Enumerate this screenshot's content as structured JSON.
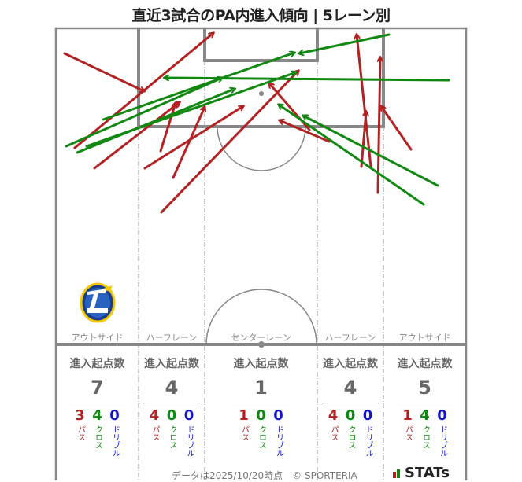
{
  "title": "直近3試合のPA内進入傾向 | 5レーン別",
  "lanes": [
    {
      "label": "アウトサイド",
      "stat_header": "進入起点数",
      "total": "7",
      "pass": "3",
      "cross": "4",
      "dribble": "0"
    },
    {
      "label": "ハーフレーン",
      "stat_header": "進入起点数",
      "total": "4",
      "pass": "4",
      "cross": "0",
      "dribble": "0"
    },
    {
      "label": "センターレーン",
      "stat_header": "進入起点数",
      "total": "1",
      "pass": "1",
      "cross": "0",
      "dribble": "0"
    },
    {
      "label": "ハーフレーン",
      "stat_header": "進入起点数",
      "total": "4",
      "pass": "4",
      "cross": "0",
      "dribble": "0"
    },
    {
      "label": "アウトサイド",
      "stat_header": "進入起点数",
      "total": "5",
      "pass": "1",
      "cross": "4",
      "dribble": "0"
    }
  ],
  "type_labels": {
    "pass": "パス",
    "cross": "クロス",
    "dribble": "ドリブル"
  },
  "footer": "データは2025/10/20時点　© SPORTERIA",
  "brand": "STATs",
  "colors": {
    "pass": "#b22222",
    "cross": "#118811",
    "dribble": "#1515cc",
    "pitch_line": "#888888"
  },
  "chart_data": {
    "type": "arrow-map",
    "title": "直近3試合のPA内進入傾向 | 5レーン別",
    "categories": [
      "アウトサイド",
      "ハーフレーン",
      "センターレーン",
      "ハーフレーン",
      "アウトサイド"
    ],
    "series": [
      {
        "name": "パス",
        "values": [
          3,
          4,
          1,
          4,
          1
        ]
      },
      {
        "name": "クロス",
        "values": [
          4,
          0,
          0,
          0,
          4
        ]
      },
      {
        "name": "ドリブル",
        "values": [
          0,
          0,
          0,
          0,
          0
        ]
      }
    ],
    "totals": [
      7,
      4,
      1,
      4,
      5
    ],
    "arrows": [
      {
        "type": "pass",
        "from": [
          82,
          68
        ],
        "to": [
          183,
          116
        ]
      },
      {
        "type": "pass",
        "from": [
          95,
          188
        ],
        "to": [
          271,
          42
        ]
      },
      {
        "type": "pass",
        "from": [
          120,
          214
        ],
        "to": [
          228,
          130
        ]
      },
      {
        "type": "pass",
        "from": [
          204,
          192
        ],
        "to": [
          223,
          131
        ]
      },
      {
        "type": "pass",
        "from": [
          220,
          226
        ],
        "to": [
          260,
          136
        ]
      },
      {
        "type": "pass",
        "from": [
          184,
          214
        ],
        "to": [
          309,
          135
        ]
      },
      {
        "type": "pass",
        "from": [
          205,
          270
        ],
        "to": [
          379,
          90
        ]
      },
      {
        "type": "pass",
        "from": [
          418,
          180
        ],
        "to": [
          355,
          153
        ]
      },
      {
        "type": "pass",
        "from": [
          393,
          165
        ],
        "to": [
          342,
          106
        ]
      },
      {
        "type": "pass",
        "from": [
          471,
          212
        ],
        "to": [
          453,
          44
        ]
      },
      {
        "type": "pass",
        "from": [
          459,
          212
        ],
        "to": [
          465,
          142
        ]
      },
      {
        "type": "pass",
        "from": [
          480,
          245
        ],
        "to": [
          483,
          73
        ]
      },
      {
        "type": "pass",
        "from": [
          522,
          190
        ],
        "to": [
          484,
          135
        ]
      },
      {
        "type": "cross",
        "from": [
          84,
          186
        ],
        "to": [
          282,
          99
        ]
      },
      {
        "type": "cross",
        "from": [
          98,
          194
        ],
        "to": [
          298,
          113
        ]
      },
      {
        "type": "cross",
        "from": [
          131,
          152
        ],
        "to": [
          374,
          67
        ]
      },
      {
        "type": "cross",
        "from": [
          494,
          44
        ],
        "to": [
          380,
          68
        ]
      },
      {
        "type": "cross",
        "from": [
          570,
          102
        ],
        "to": [
          209,
          99
        ]
      },
      {
        "type": "cross",
        "from": [
          110,
          186
        ],
        "to": [
          376,
          92
        ]
      },
      {
        "type": "cross",
        "from": [
          538,
          260
        ],
        "to": [
          354,
          133
        ]
      },
      {
        "type": "cross",
        "from": [
          556,
          236
        ],
        "to": [
          385,
          147
        ]
      }
    ]
  }
}
